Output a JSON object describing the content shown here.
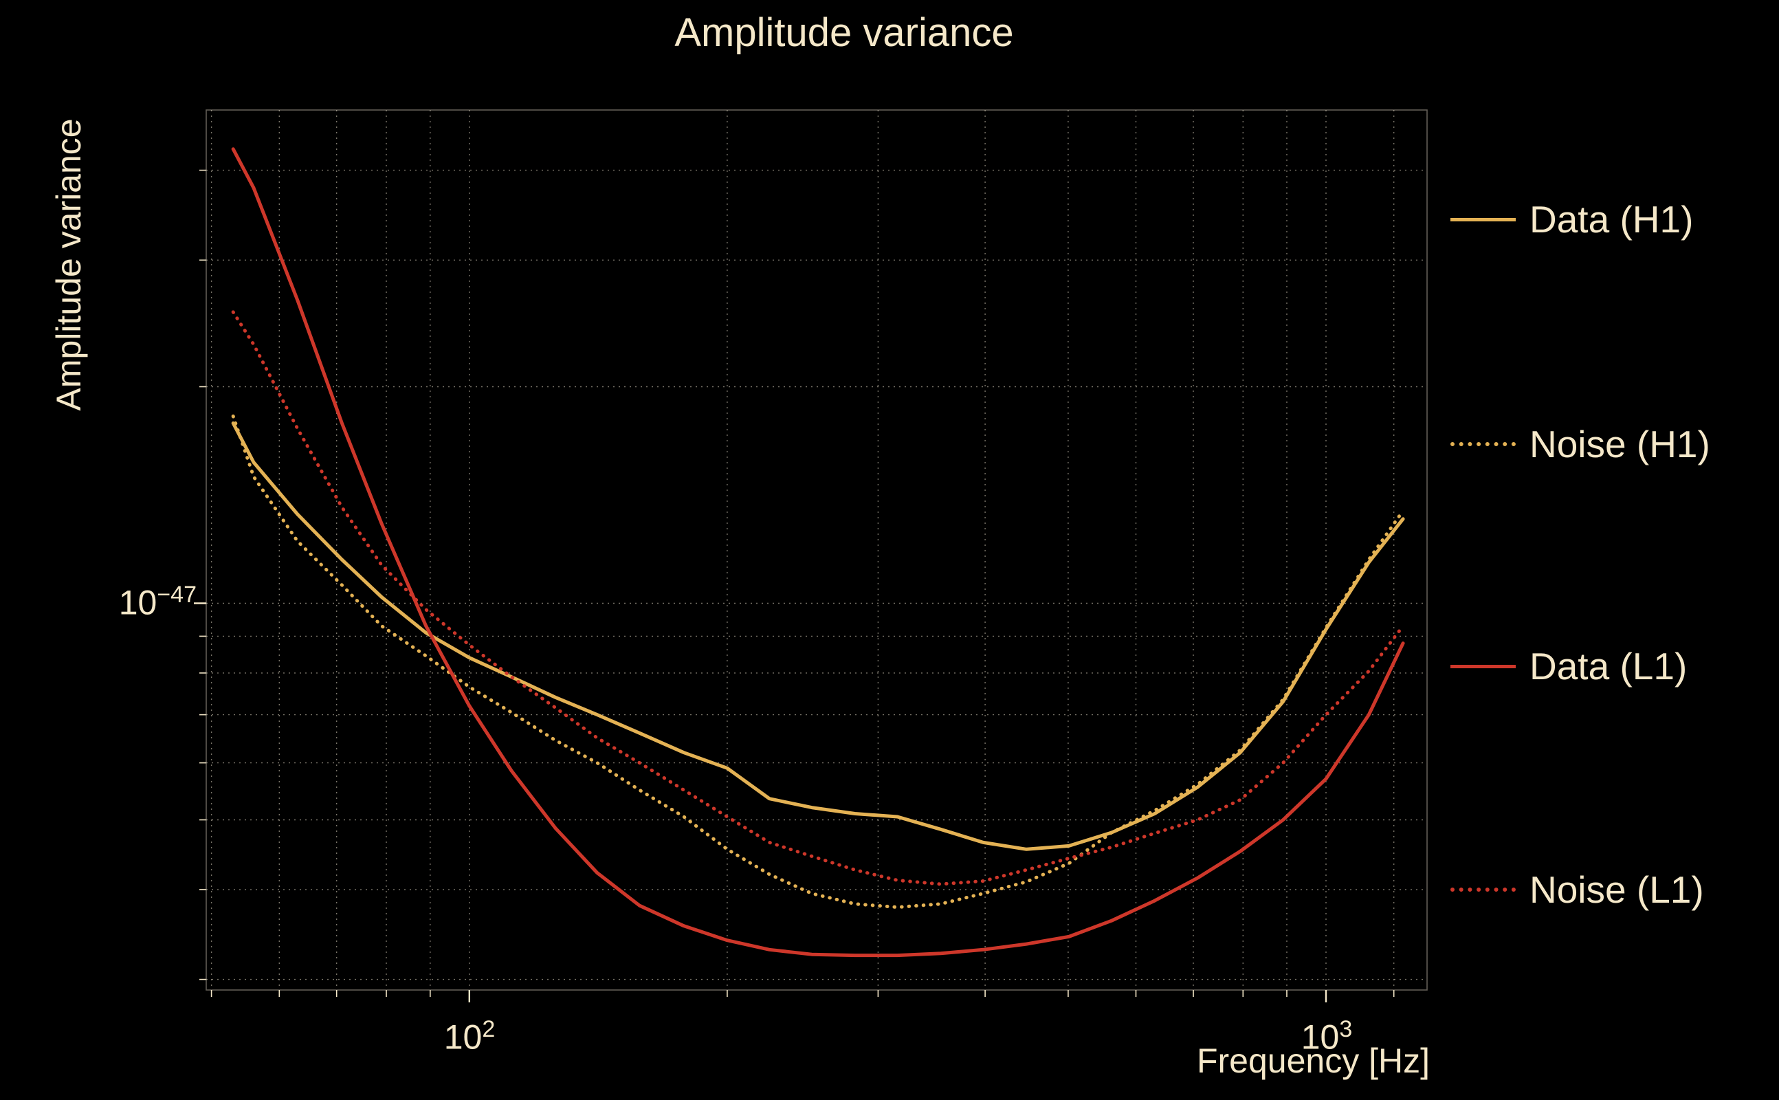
{
  "ticks": {
    "x": [
      {
        "base": "10",
        "exp": "2"
      },
      {
        "base": "10",
        "exp": "3"
      }
    ],
    "y": [
      {
        "base": "10",
        "exp": "−47"
      }
    ]
  },
  "colors": {
    "background": "#000000",
    "text": "#f5e8c9",
    "grid": "#f3e9d4",
    "gold": "#e4b254",
    "red": "#ce372a"
  },
  "chart_data": {
    "type": "line",
    "title": "Amplitude variance",
    "xlabel": "Frequency [Hz]",
    "ylabel": "Amplitude variance",
    "x_scale": "log",
    "y_scale": "log",
    "xlim": [
      49.3,
      1312
    ],
    "ylim": [
      2.9e-48,
      4.85e-47
    ],
    "grid": "log major+minor, dotted, both axes",
    "legend_position": "right-outside",
    "x": [
      53,
      56,
      63,
      71,
      79,
      89,
      100,
      112,
      126,
      141,
      158,
      178,
      200,
      224,
      251,
      282,
      316,
      355,
      398,
      447,
      501,
      562,
      631,
      708,
      794,
      891,
      1000,
      1122,
      1230
    ],
    "series": [
      {
        "name": "Data (H1)",
        "color": "#e4b254",
        "style": "solid",
        "values_1e48": [
          17.8,
          15.7,
          13.3,
          11.5,
          10.2,
          9.1,
          8.4,
          7.9,
          7.4,
          7.0,
          6.6,
          6.2,
          5.9,
          5.35,
          5.2,
          5.1,
          5.05,
          4.85,
          4.65,
          4.55,
          4.6,
          4.8,
          5.1,
          5.55,
          6.2,
          7.3,
          9.2,
          11.4,
          13.1
        ]
      },
      {
        "name": "Noise (H1)",
        "color": "#e4b254",
        "style": "dotted",
        "values_1e48": [
          18.2,
          15.0,
          12.2,
          10.6,
          9.3,
          8.45,
          7.65,
          7.05,
          6.45,
          6.0,
          5.5,
          5.05,
          4.55,
          4.2,
          3.95,
          3.82,
          3.78,
          3.82,
          3.95,
          4.1,
          4.35,
          4.8,
          5.15,
          5.6,
          6.25,
          7.35,
          9.25,
          11.5,
          13.45
        ]
      },
      {
        "name": "Data (L1)",
        "color": "#ce372a",
        "style": "solid",
        "values_1e48": [
          42.8,
          37.8,
          26.4,
          17.8,
          12.9,
          9.3,
          7.2,
          5.85,
          4.87,
          4.22,
          3.8,
          3.56,
          3.4,
          3.3,
          3.25,
          3.24,
          3.24,
          3.26,
          3.3,
          3.36,
          3.44,
          3.62,
          3.86,
          4.15,
          4.52,
          5.0,
          5.7,
          7.0,
          8.8
        ]
      },
      {
        "name": "Noise (L1)",
        "color": "#ce372a",
        "style": "dotted",
        "values_1e48": [
          25.4,
          22.9,
          17.5,
          13.6,
          11.3,
          9.8,
          8.75,
          7.9,
          7.16,
          6.5,
          6.0,
          5.5,
          5.05,
          4.65,
          4.45,
          4.26,
          4.12,
          4.07,
          4.11,
          4.26,
          4.42,
          4.58,
          4.79,
          5.0,
          5.33,
          6.0,
          7.0,
          8.05,
          9.3
        ]
      }
    ]
  }
}
